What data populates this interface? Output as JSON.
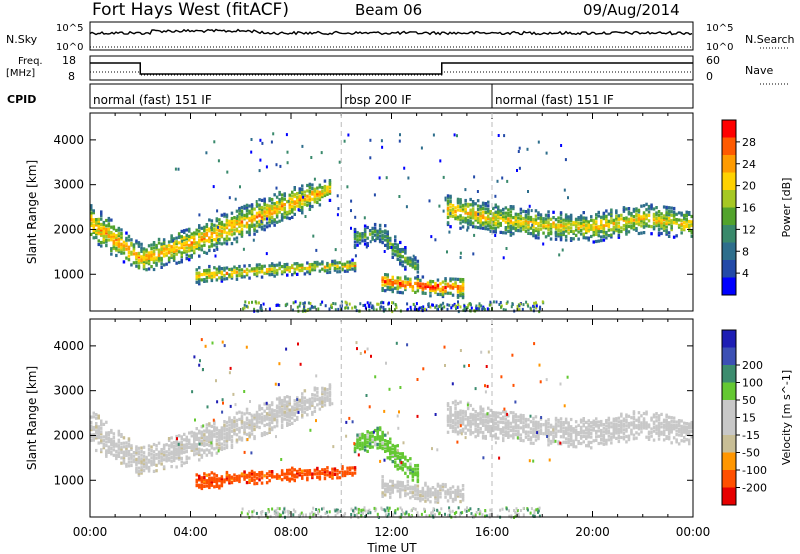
{
  "header": {
    "station": "Fort Hays West (fitACF)",
    "beam": "Beam 06",
    "date": "09/Aug/2014"
  },
  "strip_labels": {
    "nsky": "N.Sky",
    "nsky_ticks": [
      "10^5",
      "10^0"
    ],
    "nsearch": "N.Search",
    "nsearch_ticks": [
      "10^5",
      "10^0"
    ],
    "freq_label_1": "Freq.",
    "freq_label_2": "[MHz]",
    "freq_ticks": [
      "18",
      "8"
    ],
    "nave": "Nave",
    "nave_ticks": [
      "60",
      "0"
    ],
    "cpid": "CPID"
  },
  "cpid_segments": [
    {
      "label": "normal (fast) 151 IF",
      "start_h": 0,
      "end_h": 10
    },
    {
      "label": "rbsp 200 IF",
      "start_h": 10,
      "end_h": 16
    },
    {
      "label": "normal (fast) 151 IF",
      "start_h": 16,
      "end_h": 24
    }
  ],
  "colors": {
    "power": [
      "#0000ff",
      "#234aa8",
      "#2e6e8c",
      "#39896b",
      "#52a32c",
      "#a6c823",
      "#ffd200",
      "#ff9b00",
      "#ff5a00",
      "#ff0000"
    ],
    "velocity": [
      "#e60000",
      "#ff5000",
      "#ff9600",
      "#c8be96",
      "#c8c8c8",
      "#c8c8c8",
      "#64c832",
      "#3c8c6e",
      "#3c50b4",
      "#1e1eb4"
    ]
  },
  "chart_data": [
    {
      "type": "heatmap",
      "name": "Power",
      "ylabel": "Slant Range [km]",
      "yticks": [
        "1000",
        "2000",
        "3000",
        "4000"
      ],
      "ylim": [
        180,
        4600
      ],
      "xlim": [
        0,
        24
      ],
      "colorbar_label": "Power [dB]",
      "colorbar_ticks": [
        "4",
        "8",
        "12",
        "16",
        "20",
        "24",
        "28"
      ],
      "bands": [
        {
          "t": [
            0,
            2,
            4,
            6,
            8,
            9.5
          ],
          "r": [
            2150,
            1350,
            1700,
            2150,
            2600,
            2900
          ],
          "w": [
            420,
            320,
            360,
            380,
            330,
            250
          ],
          "level": 0.75
        },
        {
          "t": [
            4.2,
            6,
            8,
            10.5
          ],
          "r": [
            980,
            1050,
            1130,
            1200
          ],
          "w": [
            200,
            150,
            140,
            120
          ],
          "level": 0.7
        },
        {
          "t": [
            11.6,
            12.5,
            13.5,
            14.8
          ],
          "r": [
            860,
            780,
            720,
            700
          ],
          "w": [
            220,
            200,
            200,
            220
          ],
          "level": 0.9
        },
        {
          "t": [
            14.2,
            16,
            18,
            20,
            22,
            24
          ],
          "r": [
            2450,
            2250,
            2100,
            2050,
            2250,
            2100
          ],
          "w": [
            380,
            340,
            300,
            330,
            320,
            340
          ],
          "level": 0.68
        },
        {
          "t": [
            10.5,
            11.5,
            12.3,
            13
          ],
          "r": [
            1800,
            1950,
            1450,
            1150
          ],
          "w": [
            200,
            260,
            260,
            220
          ],
          "level": 0.45
        }
      ],
      "noise_density": 0.05
    },
    {
      "type": "heatmap",
      "name": "Velocity",
      "xlabel": "Time UT",
      "xticks": [
        "00:00",
        "04:00",
        "08:00",
        "12:00",
        "16:00",
        "20:00",
        "00:00"
      ],
      "ylabel": "Slant Range [km]",
      "yticks": [
        "1000",
        "2000",
        "3000",
        "4000"
      ],
      "ylim": [
        180,
        4600
      ],
      "xlim": [
        0,
        24
      ],
      "colorbar_label": "Velocity [m s^-1]",
      "colorbar_ticks": [
        "-200",
        "-100",
        "-50",
        "-15",
        "15",
        "50",
        "100",
        "200"
      ],
      "bands": [
        {
          "t": [
            0,
            2,
            4,
            6,
            8,
            9.5
          ],
          "r": [
            2150,
            1400,
            1750,
            2200,
            2600,
            2900
          ],
          "w": [
            420,
            320,
            360,
            380,
            330,
            250
          ],
          "v": 0.45
        },
        {
          "t": [
            4.2,
            6,
            8,
            10.5
          ],
          "r": [
            960,
            1050,
            1130,
            1200
          ],
          "w": [
            200,
            150,
            140,
            120
          ],
          "v": 0.15
        },
        {
          "t": [
            11.6,
            12.5,
            13.5,
            14.8
          ],
          "r": [
            860,
            780,
            720,
            700
          ],
          "w": [
            220,
            200,
            200,
            220
          ],
          "v": 0.45
        },
        {
          "t": [
            14.2,
            16,
            18,
            20,
            22,
            24
          ],
          "r": [
            2450,
            2250,
            2100,
            2050,
            2250,
            2100
          ],
          "w": [
            380,
            340,
            300,
            330,
            320,
            340
          ],
          "v": 0.48
        },
        {
          "t": [
            10.5,
            11.5,
            12.3,
            13
          ],
          "r": [
            1800,
            1950,
            1450,
            1150
          ],
          "w": [
            200,
            260,
            260,
            220
          ],
          "v": 0.65
        }
      ]
    }
  ]
}
